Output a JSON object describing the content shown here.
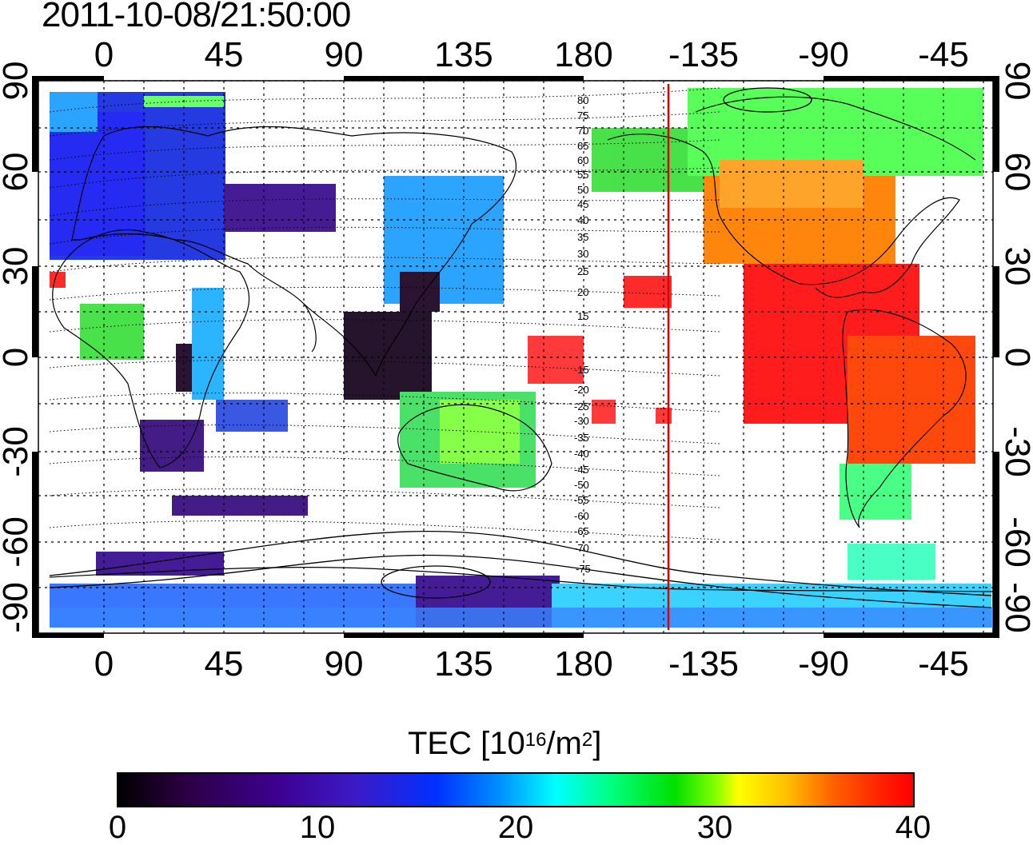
{
  "title": "2011-10-08/21:50:00",
  "map": {
    "top_lon_labels": [
      "0",
      "45",
      "90",
      "135",
      "180",
      "-135",
      "-90",
      "-45"
    ],
    "bottom_lon_labels": [
      "0",
      "45",
      "90",
      "135",
      "180",
      "-135",
      "-90",
      "-45"
    ],
    "left_lat_labels": [
      "90",
      "60",
      "30",
      "0",
      "-30",
      "-60",
      "-90"
    ],
    "right_lat_labels": [
      "90",
      "60",
      "30",
      "0",
      "-30",
      "-60",
      "-90"
    ],
    "magnetic_lat_labels": [
      "80",
      "75",
      "70",
      "65",
      "60",
      "55",
      "50",
      "45",
      "40",
      "35",
      "30",
      "25",
      "20",
      "15",
      "-15",
      "-20",
      "-25",
      "-30",
      "-35",
      "-40",
      "-45",
      "-50",
      "-55",
      "-60",
      "-65",
      "-70",
      "-75"
    ],
    "terminator_longitude": -145
  },
  "colorbar": {
    "title_prefix": "TEC  [10",
    "title_exp": "16",
    "title_mid": "/m",
    "title_exp2": "2",
    "title_suffix": "]",
    "tick_labels": [
      "0",
      "10",
      "20",
      "30",
      "40"
    ],
    "min": 0,
    "max": 40
  }
}
